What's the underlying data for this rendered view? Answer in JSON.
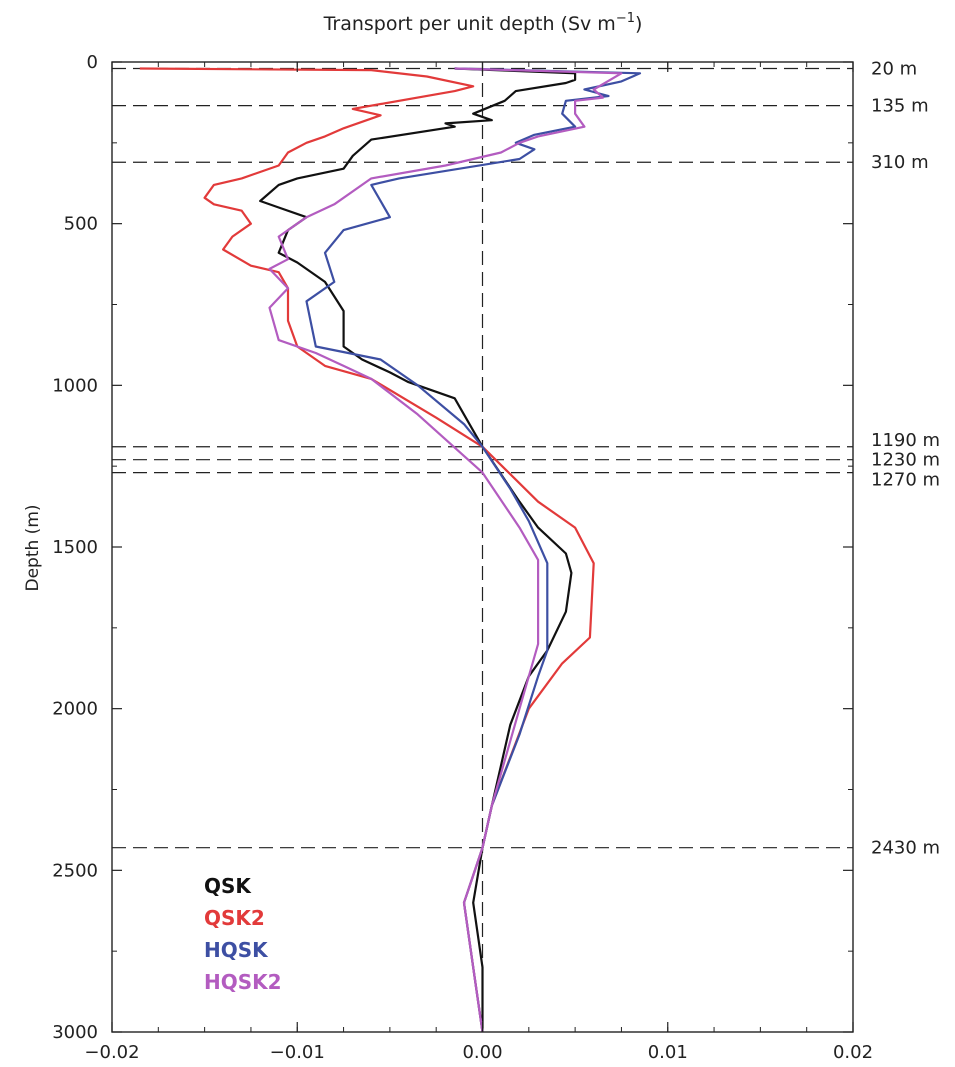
{
  "chart_data": {
    "type": "line",
    "title": "Transport per unit depth (Sv m",
    "title_superscript": "−1",
    "title_close": ")",
    "xlabel": "",
    "ylabel": "Depth (m)",
    "xlim": [
      -0.02,
      0.02
    ],
    "ylim": [
      0,
      3000
    ],
    "y_inverted": true,
    "grid": false,
    "legend_position": "bottom-left",
    "x_ticks": [
      -0.02,
      -0.01,
      0.0,
      0.01,
      0.02
    ],
    "x_tick_labels": [
      "−0.02",
      "−0.01",
      "0.00",
      "0.01",
      "0.02"
    ],
    "y_ticks": [
      0,
      500,
      1000,
      1500,
      2000,
      2500,
      3000
    ],
    "y_tick_labels": [
      "0",
      "500",
      "1000",
      "1500",
      "2000",
      "2500",
      "3000"
    ],
    "zero_line_x": 0,
    "reference_depths": [
      {
        "depth": 20,
        "label": "20 m"
      },
      {
        "depth": 135,
        "label": "135 m"
      },
      {
        "depth": 310,
        "label": "310 m"
      },
      {
        "depth": 1190,
        "label": "1190 m"
      },
      {
        "depth": 1230,
        "label": "1230 m"
      },
      {
        "depth": 1270,
        "label": "1270 m"
      },
      {
        "depth": 2430,
        "label": "2430 m"
      }
    ],
    "series": [
      {
        "name": "QSK",
        "color": "#111111",
        "points": [
          [
            -0.0015,
            20
          ],
          [
            0.005,
            35
          ],
          [
            0.005,
            55
          ],
          [
            0.0045,
            65
          ],
          [
            0.0018,
            90
          ],
          [
            0.0012,
            120
          ],
          [
            -0.0005,
            160
          ],
          [
            0.0005,
            180
          ],
          [
            -0.002,
            190
          ],
          [
            -0.0015,
            200
          ],
          [
            -0.006,
            240
          ],
          [
            -0.007,
            290
          ],
          [
            -0.0075,
            330
          ],
          [
            -0.01,
            360
          ],
          [
            -0.011,
            380
          ],
          [
            -0.012,
            430
          ],
          [
            -0.011,
            450
          ],
          [
            -0.0095,
            480
          ],
          [
            -0.0105,
            520
          ],
          [
            -0.011,
            590
          ],
          [
            -0.01,
            620
          ],
          [
            -0.0085,
            680
          ],
          [
            -0.0075,
            770
          ],
          [
            -0.0075,
            810
          ],
          [
            -0.0075,
            880
          ],
          [
            -0.0065,
            920
          ],
          [
            -0.005,
            960
          ],
          [
            -0.004,
            990
          ],
          [
            -0.0015,
            1040
          ],
          [
            0.0,
            1190
          ],
          [
            0.002,
            1360
          ],
          [
            0.003,
            1440
          ],
          [
            0.0045,
            1520
          ],
          [
            0.0048,
            1580
          ],
          [
            0.0045,
            1700
          ],
          [
            0.0035,
            1820
          ],
          [
            0.0025,
            1900
          ],
          [
            0.0015,
            2050
          ],
          [
            0.0005,
            2300
          ],
          [
            0.0,
            2430
          ],
          [
            -0.0005,
            2600
          ],
          [
            0.0,
            2800
          ],
          [
            0.0,
            3000
          ]
        ]
      },
      {
        "name": "QSK2",
        "color": "#e23a3a",
        "points": [
          [
            -0.0185,
            20
          ],
          [
            -0.006,
            25
          ],
          [
            -0.003,
            45
          ],
          [
            -0.0005,
            75
          ],
          [
            -0.0015,
            90
          ],
          [
            -0.007,
            145
          ],
          [
            -0.0055,
            165
          ],
          [
            -0.0075,
            205
          ],
          [
            -0.0085,
            230
          ],
          [
            -0.0095,
            250
          ],
          [
            -0.0105,
            280
          ],
          [
            -0.011,
            320
          ],
          [
            -0.013,
            360
          ],
          [
            -0.0145,
            380
          ],
          [
            -0.015,
            420
          ],
          [
            -0.0145,
            440
          ],
          [
            -0.013,
            460
          ],
          [
            -0.0125,
            500
          ],
          [
            -0.0135,
            540
          ],
          [
            -0.014,
            580
          ],
          [
            -0.0125,
            630
          ],
          [
            -0.011,
            650
          ],
          [
            -0.0105,
            700
          ],
          [
            -0.0105,
            800
          ],
          [
            -0.01,
            880
          ],
          [
            -0.0085,
            940
          ],
          [
            -0.006,
            980
          ],
          [
            -0.0025,
            1100
          ],
          [
            0.0,
            1190
          ],
          [
            0.003,
            1360
          ],
          [
            0.005,
            1440
          ],
          [
            0.006,
            1550
          ],
          [
            0.0058,
            1780
          ],
          [
            0.0043,
            1860
          ],
          [
            0.0025,
            2000
          ],
          [
            0.0005,
            2300
          ],
          [
            0.0,
            2430
          ],
          [
            -0.001,
            2600
          ],
          [
            -0.0005,
            2800
          ],
          [
            0.0,
            3000
          ]
        ]
      },
      {
        "name": "HQSK",
        "color": "#3d4fa3",
        "points": [
          [
            -0.0015,
            20
          ],
          [
            0.0085,
            35
          ],
          [
            0.0075,
            60
          ],
          [
            0.0055,
            85
          ],
          [
            0.0068,
            105
          ],
          [
            0.0045,
            120
          ],
          [
            0.0043,
            160
          ],
          [
            0.005,
            200
          ],
          [
            0.0028,
            225
          ],
          [
            0.0018,
            250
          ],
          [
            0.0028,
            270
          ],
          [
            0.002,
            300
          ],
          [
            -0.0045,
            360
          ],
          [
            -0.006,
            380
          ],
          [
            -0.005,
            480
          ],
          [
            -0.0075,
            520
          ],
          [
            -0.0085,
            590
          ],
          [
            -0.008,
            680
          ],
          [
            -0.0095,
            740
          ],
          [
            -0.009,
            880
          ],
          [
            -0.0055,
            920
          ],
          [
            -0.0035,
            1000
          ],
          [
            -0.001,
            1120
          ],
          [
            0.0,
            1190
          ],
          [
            0.0015,
            1320
          ],
          [
            0.0025,
            1420
          ],
          [
            0.0035,
            1550
          ],
          [
            0.0035,
            1820
          ],
          [
            0.003,
            1900
          ],
          [
            0.002,
            2080
          ],
          [
            0.0005,
            2300
          ],
          [
            0.0,
            2430
          ],
          [
            -0.001,
            2600
          ],
          [
            -0.0005,
            2800
          ],
          [
            0.0,
            3000
          ]
        ]
      },
      {
        "name": "HQSK2",
        "color": "#b35cc0",
        "points": [
          [
            -0.0015,
            20
          ],
          [
            0.0075,
            35
          ],
          [
            0.006,
            85
          ],
          [
            0.0065,
            110
          ],
          [
            0.005,
            120
          ],
          [
            0.005,
            160
          ],
          [
            0.0055,
            200
          ],
          [
            0.003,
            230
          ],
          [
            0.002,
            250
          ],
          [
            0.001,
            280
          ],
          [
            -0.002,
            320
          ],
          [
            -0.006,
            360
          ],
          [
            -0.008,
            440
          ],
          [
            -0.0095,
            480
          ],
          [
            -0.011,
            540
          ],
          [
            -0.0105,
            610
          ],
          [
            -0.0115,
            640
          ],
          [
            -0.0105,
            700
          ],
          [
            -0.0115,
            760
          ],
          [
            -0.011,
            860
          ],
          [
            -0.009,
            900
          ],
          [
            -0.0075,
            940
          ],
          [
            -0.006,
            980
          ],
          [
            -0.0035,
            1090
          ],
          [
            0.0,
            1270
          ],
          [
            0.002,
            1440
          ],
          [
            0.003,
            1540
          ],
          [
            0.003,
            1800
          ],
          [
            0.002,
            2000
          ],
          [
            0.0005,
            2300
          ],
          [
            0.0,
            2430
          ],
          [
            -0.001,
            2600
          ],
          [
            -0.0005,
            2800
          ],
          [
            0.0,
            3000
          ]
        ]
      }
    ]
  }
}
